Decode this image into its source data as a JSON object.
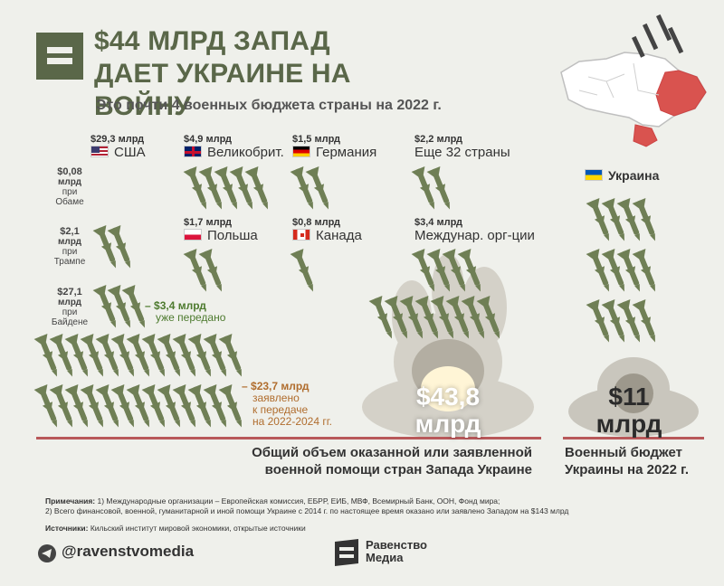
{
  "header": {
    "title": "$44 МЛРД ЗАПАД ДАЕТ УКРАИНЕ НА ВОЙНУ",
    "subtitle": "Это почти 4 военных бюджета страны на 2022 г."
  },
  "donors": [
    {
      "amount": "$29,3 млрд",
      "name": "США",
      "flag": "us"
    },
    {
      "amount": "$4,9 млрд",
      "name": "Великобрит.",
      "flag": "uk"
    },
    {
      "amount": "$1,5 млрд",
      "name": "Германия",
      "flag": "de"
    },
    {
      "amount": "$2,2 млрд",
      "name": "Еще 32 страны",
      "flag": ""
    },
    {
      "amount": "$1,7 млрд",
      "name": "Польша",
      "flag": "pl"
    },
    {
      "amount": "$0,8 млрд",
      "name": "Канада",
      "flag": "ca"
    },
    {
      "amount": "$3,4 млрд",
      "name": "Междунар. орг-ции",
      "flag": ""
    }
  ],
  "us_eras": [
    {
      "value": "$0,08",
      "unit": "млрд",
      "l1": "при",
      "l2": "Обаме"
    },
    {
      "value": "$2,1",
      "unit": "млрд",
      "l1": "при",
      "l2": "Трампе"
    },
    {
      "value": "$27,1",
      "unit": "млрд",
      "l1": "при",
      "l2": "Байдене"
    }
  ],
  "notes_green": {
    "amount": "$3,4 млрд",
    "text": "уже передано"
  },
  "notes_orange": {
    "amount": "$23,7 млрд",
    "l1": "заявлено",
    "l2": "к передаче",
    "l3": "на 2022-2024 гг."
  },
  "totals": {
    "west_value": "$43,8",
    "west_unit": "млрд",
    "west_caption_1": "Общий объем оказанной или заявленной",
    "west_caption_2": "военной помощи стран Запада Украине",
    "ukraine_label": "Украина",
    "ukraine_value": "$11",
    "ukraine_unit": "млрд",
    "ukraine_caption_1": "Военный бюджет",
    "ukraine_caption_2": "Украины на 2022 г."
  },
  "footnotes": {
    "label": "Примечания:",
    "line1": " 1) Международные организации – Европейская комиссия, ЕБРР, ЕИБ, МВФ, Всемирный Банк, ООН, Фонд мира;",
    "line2": "2) Всего финансовой, военной, гуманитарной и иной помощи Украине с 2014 г. по настоящее время оказано или заявлено Западом на $143 млрд",
    "src_label": "Источники:",
    "src_text": " Кильский институт мировой экономики, открытые источники"
  },
  "footer": {
    "handle": "@ravenstvomedia",
    "brand_1": "Равенство",
    "brand_2": "Медиа"
  },
  "colors": {
    "accent": "#5a6749",
    "missile": "#6f7f55",
    "baseline": "#b8585a",
    "green": "#4d7a2e",
    "orange": "#b06d2e"
  }
}
